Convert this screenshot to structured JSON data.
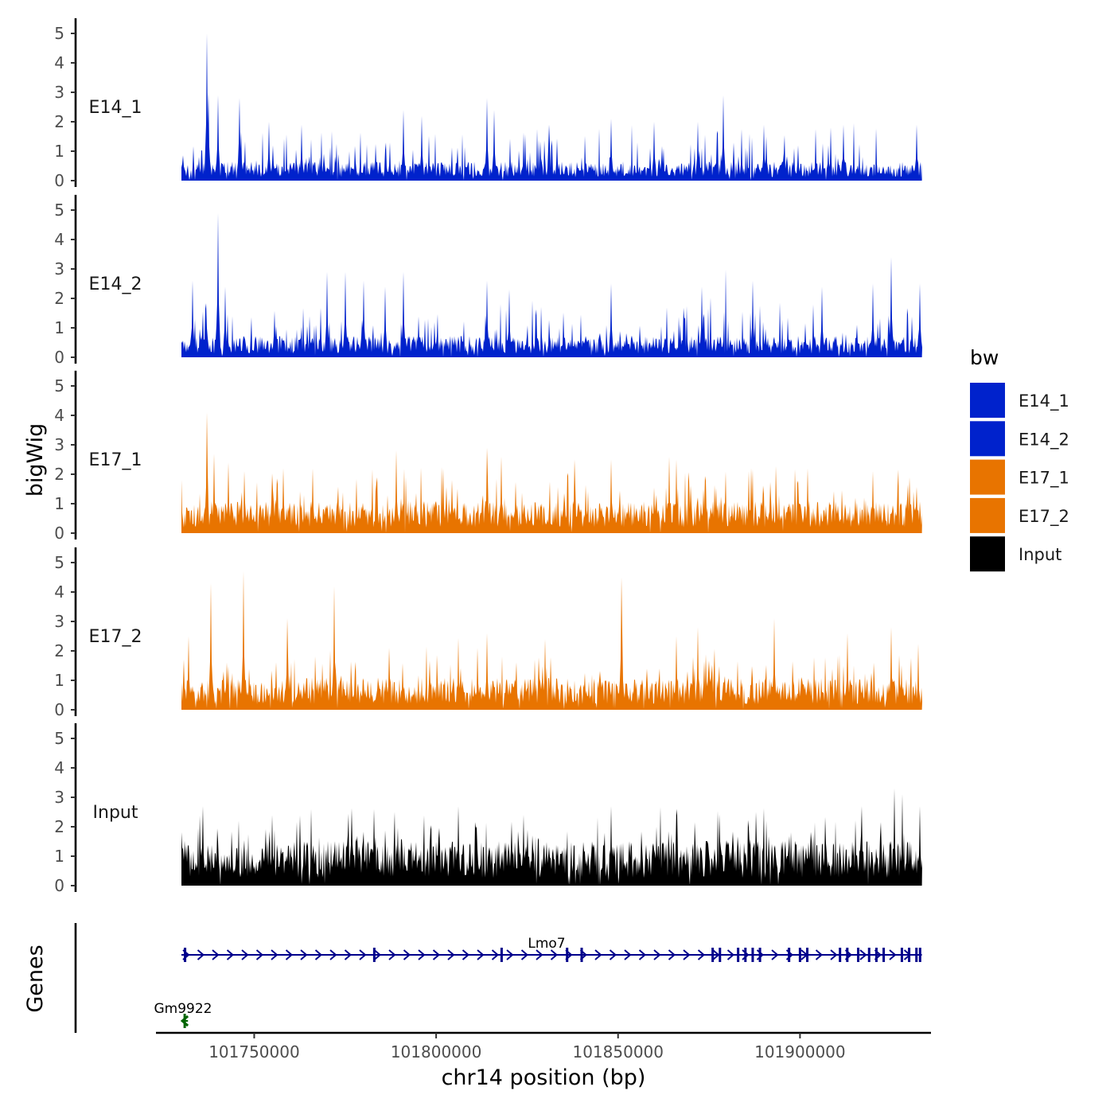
{
  "chart_data": {
    "type": "area",
    "title": "",
    "ylabel": "bigWig",
    "xlabel": "chr14 position (bp)",
    "genes_label": "Genes",
    "chromosome": "chr14",
    "xlim": [
      101723000,
      101936000
    ],
    "data_x_range": [
      101730000,
      101933500
    ],
    "xticks": [
      101750000,
      101800000,
      101850000,
      101900000
    ],
    "xtick_labels": [
      "101750000",
      "101800000",
      "101850000",
      "101900000"
    ],
    "ylim": [
      0,
      5.3
    ],
    "yticks": [
      0,
      1,
      2,
      3,
      4,
      5
    ],
    "legend": {
      "title": "bw",
      "placement": "right",
      "entries": [
        {
          "name": "E14_1",
          "color": "#0022cc"
        },
        {
          "name": "E14_2",
          "color": "#0022cc"
        },
        {
          "name": "E17_1",
          "color": "#e87400"
        },
        {
          "name": "E17_2",
          "color": "#e87400"
        },
        {
          "name": "Input",
          "color": "#000000"
        }
      ]
    },
    "series": [
      {
        "name": "E14_1",
        "color": "#0022cc",
        "baseline": 0.45,
        "peaks": [
          {
            "x": 101737000,
            "y": 5.0
          },
          {
            "x": 101737500,
            "y": 3.0
          },
          {
            "x": 101740000,
            "y": 2.9
          },
          {
            "x": 101746000,
            "y": 2.8
          },
          {
            "x": 101754000,
            "y": 2.0
          },
          {
            "x": 101763000,
            "y": 1.9
          },
          {
            "x": 101791000,
            "y": 2.4
          },
          {
            "x": 101796000,
            "y": 2.2
          },
          {
            "x": 101814000,
            "y": 2.8
          },
          {
            "x": 101816000,
            "y": 2.4
          },
          {
            "x": 101831000,
            "y": 1.9
          },
          {
            "x": 101848000,
            "y": 2.1
          },
          {
            "x": 101860000,
            "y": 2.0
          },
          {
            "x": 101872000,
            "y": 2.0
          },
          {
            "x": 101879000,
            "y": 2.9
          },
          {
            "x": 101890000,
            "y": 1.9
          },
          {
            "x": 101912000,
            "y": 1.9
          },
          {
            "x": 101932000,
            "y": 1.9
          }
        ]
      },
      {
        "name": "E14_2",
        "color": "#0022cc",
        "baseline": 0.5,
        "peaks": [
          {
            "x": 101733000,
            "y": 2.6
          },
          {
            "x": 101740000,
            "y": 4.9
          },
          {
            "x": 101742000,
            "y": 2.4
          },
          {
            "x": 101770000,
            "y": 2.9
          },
          {
            "x": 101775000,
            "y": 2.9
          },
          {
            "x": 101780000,
            "y": 2.6
          },
          {
            "x": 101786000,
            "y": 2.4
          },
          {
            "x": 101791000,
            "y": 2.9
          },
          {
            "x": 101814000,
            "y": 2.6
          },
          {
            "x": 101820000,
            "y": 2.3
          },
          {
            "x": 101848000,
            "y": 2.5
          },
          {
            "x": 101873000,
            "y": 2.4
          },
          {
            "x": 101887000,
            "y": 2.6
          },
          {
            "x": 101906000,
            "y": 2.4
          },
          {
            "x": 101920000,
            "y": 2.5
          },
          {
            "x": 101925000,
            "y": 3.4
          },
          {
            "x": 101933000,
            "y": 2.5
          }
        ]
      },
      {
        "name": "E17_1",
        "color": "#e87400",
        "baseline": 0.75,
        "peaks": [
          {
            "x": 101730000,
            "y": 1.8
          },
          {
            "x": 101737000,
            "y": 4.1
          },
          {
            "x": 101739000,
            "y": 2.7
          },
          {
            "x": 101743000,
            "y": 2.4
          },
          {
            "x": 101758000,
            "y": 2.2
          },
          {
            "x": 101766000,
            "y": 2.2
          },
          {
            "x": 101789000,
            "y": 2.8
          },
          {
            "x": 101802000,
            "y": 2.2
          },
          {
            "x": 101814000,
            "y": 2.9
          },
          {
            "x": 101818000,
            "y": 2.6
          },
          {
            "x": 101838000,
            "y": 2.5
          },
          {
            "x": 101848000,
            "y": 2.5
          },
          {
            "x": 101864000,
            "y": 2.6
          },
          {
            "x": 101866000,
            "y": 2.5
          },
          {
            "x": 101886000,
            "y": 2.1
          },
          {
            "x": 101902000,
            "y": 2.2
          },
          {
            "x": 101920000,
            "y": 2.1
          },
          {
            "x": 101930000,
            "y": 1.9
          }
        ]
      },
      {
        "name": "E17_2",
        "color": "#e87400",
        "baseline": 0.75,
        "peaks": [
          {
            "x": 101732000,
            "y": 2.5
          },
          {
            "x": 101738000,
            "y": 4.3
          },
          {
            "x": 101747000,
            "y": 4.7
          },
          {
            "x": 101759000,
            "y": 3.1
          },
          {
            "x": 101772000,
            "y": 4.2
          },
          {
            "x": 101787000,
            "y": 2.1
          },
          {
            "x": 101814000,
            "y": 2.6
          },
          {
            "x": 101830000,
            "y": 2.4
          },
          {
            "x": 101851000,
            "y": 4.5
          },
          {
            "x": 101866000,
            "y": 2.5
          },
          {
            "x": 101872000,
            "y": 2.8
          },
          {
            "x": 101893000,
            "y": 3.1
          },
          {
            "x": 101913000,
            "y": 2.6
          },
          {
            "x": 101925000,
            "y": 2.8
          }
        ]
      },
      {
        "name": "Input",
        "color": "#000000",
        "baseline": 1.05,
        "peaks": [
          {
            "x": 101736000,
            "y": 2.7
          },
          {
            "x": 101755000,
            "y": 2.4
          },
          {
            "x": 101783000,
            "y": 2.6
          },
          {
            "x": 101806000,
            "y": 2.7
          },
          {
            "x": 101824000,
            "y": 2.4
          },
          {
            "x": 101848000,
            "y": 2.7
          },
          {
            "x": 101866000,
            "y": 2.6
          },
          {
            "x": 101888000,
            "y": 2.5
          },
          {
            "x": 101917000,
            "y": 2.7
          },
          {
            "x": 101926000,
            "y": 3.3
          },
          {
            "x": 101933000,
            "y": 2.7
          }
        ]
      }
    ],
    "genes": [
      {
        "name": "Lmo7",
        "start": 101730000,
        "end": 101933500,
        "strand": "+",
        "color": "#00008b",
        "exons": [
          101731000,
          101783000,
          101818000,
          101836000,
          101840000,
          101876000,
          101878000,
          101883000,
          101885000,
          101887000,
          101889000,
          101897000,
          101900000,
          101902000,
          101911000,
          101913000,
          101916000,
          101919000,
          101921000,
          101923000,
          101928000,
          101930000,
          101932000,
          101933000
        ]
      },
      {
        "name": "Gm9922",
        "start": 101730000,
        "end": 101731800,
        "strand": "-",
        "color": "#006400",
        "exons": [
          101730900
        ]
      }
    ]
  }
}
